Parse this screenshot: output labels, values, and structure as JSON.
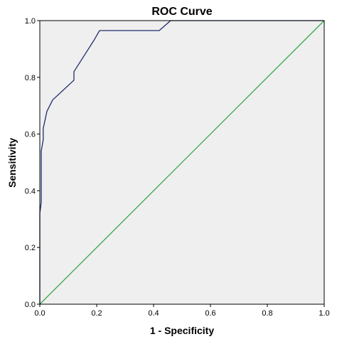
{
  "chart_data": {
    "type": "line",
    "title": "ROC Curve",
    "xlabel": "1 - Specificity",
    "ylabel": "Sensitivity",
    "xlim": [
      0.0,
      1.0
    ],
    "ylim": [
      0.0,
      1.0
    ],
    "x_ticks": [
      "0.0",
      "0.2",
      "0.4",
      "0.6",
      "0.8",
      "1.0"
    ],
    "y_ticks": [
      "0.0",
      "0.2",
      "0.4",
      "0.6",
      "0.8",
      "1.0"
    ],
    "grid": false,
    "legend": false,
    "series": [
      {
        "color": "#1f2d6e",
        "x": [
          0.0,
          0.0,
          0.005,
          0.005,
          0.012,
          0.012,
          0.025,
          0.025,
          0.035,
          0.045,
          0.12,
          0.12,
          0.19,
          0.21,
          0.42,
          0.46,
          0.46,
          1.0
        ],
        "y": [
          0.0,
          0.32,
          0.36,
          0.54,
          0.58,
          0.62,
          0.68,
          0.68,
          0.7,
          0.72,
          0.79,
          0.82,
          0.93,
          0.965,
          0.965,
          1.0,
          1.0,
          1.0
        ]
      },
      {
        "color": "#3aa84a",
        "x": [
          0.0,
          1.0
        ],
        "y": [
          0.0,
          1.0
        ]
      }
    ],
    "colors": {
      "plot_background": "#efefef",
      "frame": "#000000",
      "roc_line": "#1f2d6e",
      "reference_line": "#3aa84a"
    }
  }
}
